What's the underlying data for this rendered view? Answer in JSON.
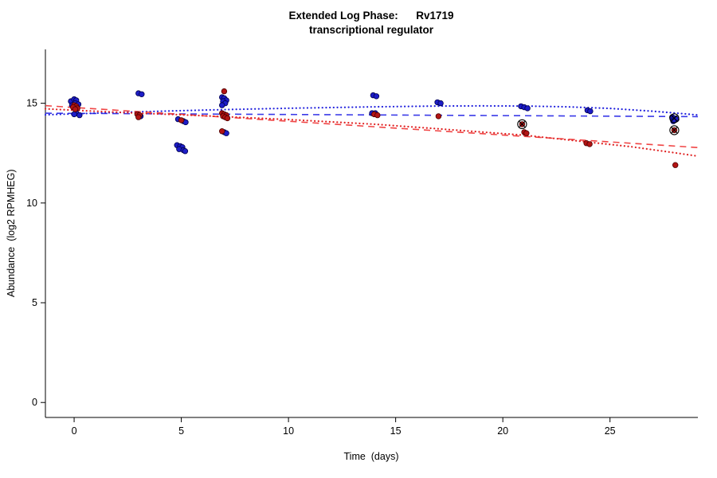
{
  "chart_data": {
    "type": "scatter",
    "title": "Extended Log Phase:      Rv1719",
    "subtitle": "transcriptional regulator",
    "xlabel": "Time  (days)",
    "ylabel": "Abundance  (log2 RPMHEG)",
    "xlim": [
      -1.34,
      29.1
    ],
    "ylim": [
      -0.75,
      17.7
    ],
    "xticks": [
      0,
      5,
      10,
      15,
      20,
      25
    ],
    "yticks": [
      0,
      5,
      10,
      15
    ],
    "grid": false,
    "legend": null,
    "colors": {
      "blue_points": "#1d1dc8",
      "red_points": "#b31414",
      "blue_trend": "#2828dd",
      "red_trend": "#e83030",
      "outlier_marker": "#000000",
      "axis": "#000000"
    },
    "series": [
      {
        "name": "blue",
        "color": "#1d1dc8",
        "edge": "#00004d",
        "points": [
          [
            -0.15,
            15.1
          ],
          [
            0,
            15.2
          ],
          [
            0.1,
            15.15
          ],
          [
            0.05,
            15.0
          ],
          [
            0.2,
            14.95
          ],
          [
            -0.1,
            14.9
          ],
          [
            0.1,
            14.5
          ],
          [
            0,
            14.45
          ],
          [
            0.25,
            14.4
          ],
          [
            3,
            15.5
          ],
          [
            3.15,
            15.45
          ],
          [
            3.1,
            14.35
          ],
          [
            4.85,
            14.2
          ],
          [
            5.1,
            14.1
          ],
          [
            5.2,
            14.05
          ],
          [
            4.8,
            12.9
          ],
          [
            4.95,
            12.85
          ],
          [
            5.05,
            12.8
          ],
          [
            4.9,
            12.7
          ],
          [
            5.1,
            12.65
          ],
          [
            5.18,
            12.6
          ],
          [
            6.9,
            15.3
          ],
          [
            7.0,
            15.25
          ],
          [
            7.1,
            15.15
          ],
          [
            6.95,
            15.1
          ],
          [
            7.05,
            15.0
          ],
          [
            6.9,
            14.9
          ],
          [
            7.0,
            13.55
          ],
          [
            7.1,
            13.5
          ],
          [
            13.95,
            15.4
          ],
          [
            14.1,
            15.35
          ],
          [
            13.9,
            14.5
          ],
          [
            14.05,
            14.5
          ],
          [
            16.95,
            15.05
          ],
          [
            17.1,
            15.0
          ],
          [
            20.85,
            14.85
          ],
          [
            21.0,
            14.8
          ],
          [
            21.15,
            14.75
          ],
          [
            23.95,
            14.65
          ],
          [
            24.08,
            14.6
          ],
          [
            27.9,
            14.3
          ],
          [
            28.0,
            14.25
          ],
          [
            28.1,
            14.2
          ],
          [
            27.95,
            14.1
          ]
        ]
      },
      {
        "name": "red",
        "color": "#b31414",
        "edge": "#4d0000",
        "points": [
          [
            0,
            14.9
          ],
          [
            0.1,
            14.85
          ],
          [
            -0.05,
            14.8
          ],
          [
            0.15,
            14.75
          ],
          [
            0.05,
            14.7
          ],
          [
            2.95,
            14.45
          ],
          [
            3.05,
            14.4
          ],
          [
            3.0,
            14.3
          ],
          [
            5.0,
            14.15
          ],
          [
            7.0,
            15.6
          ],
          [
            6.9,
            14.5
          ],
          [
            7.0,
            14.45
          ],
          [
            7.1,
            14.4
          ],
          [
            6.95,
            14.35
          ],
          [
            7.05,
            14.3
          ],
          [
            7.15,
            14.25
          ],
          [
            6.9,
            13.6
          ],
          [
            14.0,
            14.45
          ],
          [
            14.15,
            14.4
          ],
          [
            17.0,
            14.35
          ],
          [
            20.9,
            13.95
          ],
          [
            21.0,
            13.55
          ],
          [
            21.1,
            13.5
          ],
          [
            23.9,
            13.0
          ],
          [
            24.05,
            12.95
          ],
          [
            28.0,
            13.65
          ],
          [
            28.05,
            11.9
          ]
        ]
      }
    ],
    "trendlines": [
      {
        "name": "blue-dashed",
        "style": "dashed",
        "color": "#3a3ae8",
        "points": [
          [
            -1.34,
            14.5
          ],
          [
            29.1,
            14.33
          ]
        ]
      },
      {
        "name": "blue-dotted",
        "style": "dotted",
        "color": "#2020dd",
        "points": [
          [
            -1.34,
            14.42
          ],
          [
            0,
            14.47
          ],
          [
            3,
            14.57
          ],
          [
            5,
            14.63
          ],
          [
            7,
            14.68
          ],
          [
            10,
            14.75
          ],
          [
            14,
            14.82
          ],
          [
            17,
            14.86
          ],
          [
            19,
            14.87
          ],
          [
            21,
            14.86
          ],
          [
            23,
            14.82
          ],
          [
            25,
            14.74
          ],
          [
            27,
            14.6
          ],
          [
            28.5,
            14.47
          ],
          [
            29.1,
            14.41
          ]
        ]
      },
      {
        "name": "red-dashed",
        "style": "dashed",
        "color": "#f04545",
        "points": [
          [
            -1.34,
            14.88
          ],
          [
            29.1,
            12.78
          ]
        ]
      },
      {
        "name": "red-dotted",
        "style": "dotted",
        "color": "#e02222",
        "points": [
          [
            -1.34,
            14.72
          ],
          [
            0,
            14.65
          ],
          [
            3,
            14.5
          ],
          [
            5,
            14.42
          ],
          [
            7,
            14.33
          ],
          [
            10,
            14.18
          ],
          [
            14,
            13.95
          ],
          [
            17,
            13.72
          ],
          [
            21,
            13.4
          ],
          [
            24,
            13.05
          ],
          [
            26,
            12.82
          ],
          [
            28,
            12.52
          ],
          [
            29.1,
            12.35
          ]
        ]
      }
    ],
    "outliers": [
      [
        20.9,
        13.95
      ],
      [
        28.0,
        14.25
      ],
      [
        28.0,
        13.65
      ]
    ]
  }
}
